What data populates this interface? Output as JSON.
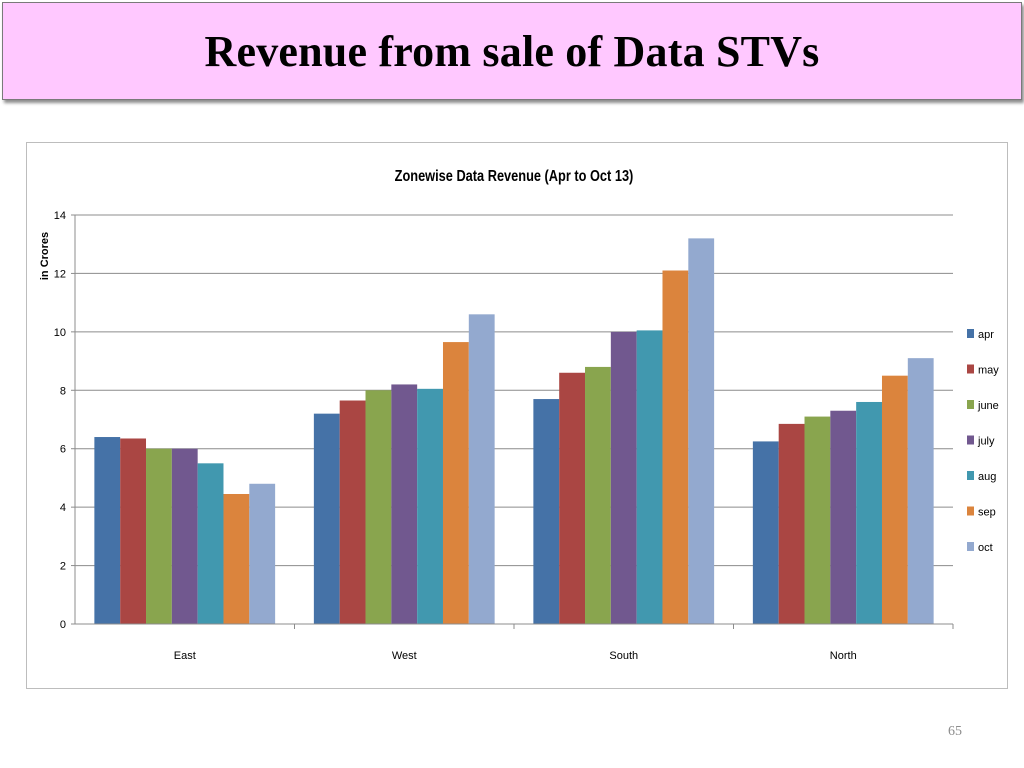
{
  "slide": {
    "title": "Revenue from sale of Data STVs",
    "page_number": "65"
  },
  "chart_data": {
    "type": "bar",
    "title": "Zonewise Data Revenue (Apr to Oct 13)",
    "xlabel": "",
    "ylabel": "in Crores",
    "ylim": [
      0,
      14
    ],
    "yticks": [
      0,
      2,
      4,
      6,
      8,
      10,
      12,
      14
    ],
    "grid": true,
    "legend_position": "right",
    "categories": [
      "East",
      "West",
      "South",
      "North"
    ],
    "series": [
      {
        "name": "apr",
        "color": "#4572a7",
        "values": [
          6.4,
          7.2,
          7.7,
          6.25
        ]
      },
      {
        "name": "may",
        "color": "#aa4643",
        "values": [
          6.35,
          7.65,
          8.6,
          6.85
        ]
      },
      {
        "name": "june",
        "color": "#89a54e",
        "values": [
          6.0,
          8.0,
          8.8,
          7.1
        ]
      },
      {
        "name": "july",
        "color": "#71588f",
        "values": [
          6.0,
          8.2,
          10.0,
          7.3
        ]
      },
      {
        "name": "aug",
        "color": "#4198af",
        "values": [
          5.5,
          8.05,
          10.05,
          7.6
        ]
      },
      {
        "name": "sep",
        "color": "#db843d",
        "values": [
          4.45,
          9.65,
          12.1,
          8.5
        ]
      },
      {
        "name": "oct",
        "color": "#93a9cf",
        "values": [
          4.8,
          10.6,
          13.2,
          9.1
        ]
      }
    ]
  }
}
